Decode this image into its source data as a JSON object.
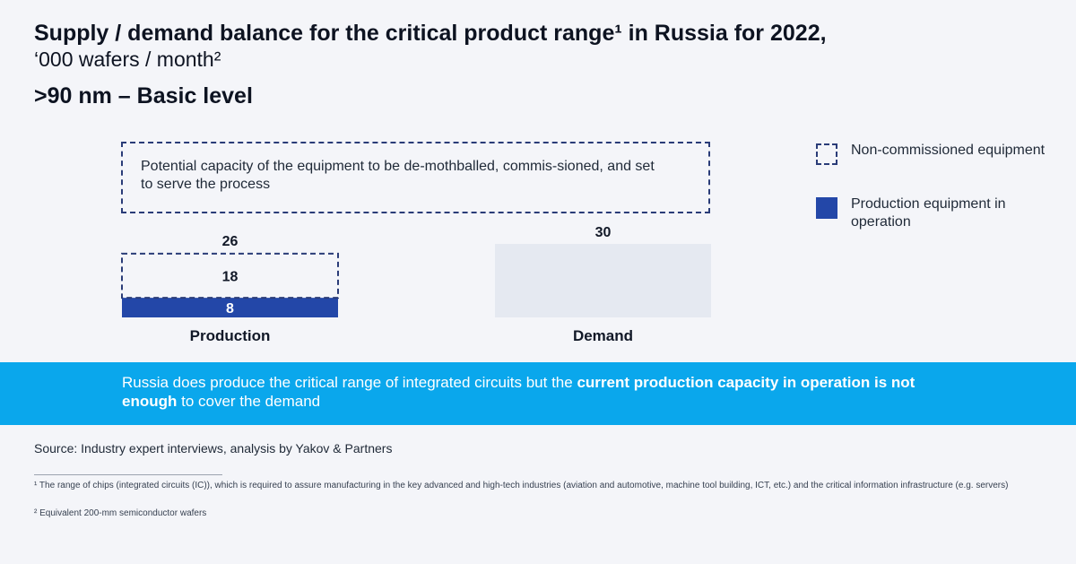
{
  "header": {
    "title": "Supply / demand balance for the critical product range¹ in Russia for 2022,",
    "subtitle": "‘000 wafers / month²",
    "level": ">90 nm – Basic level"
  },
  "potential_note": "Potential capacity of the equipment to be de-mothballed, commis-sioned, and set to serve the process",
  "legend": {
    "non_commissioned": "Non-commissioned equipment",
    "in_operation": "Production equipment in operation"
  },
  "colors": {
    "operation": "#2347a8",
    "demand": "#e5e9f1",
    "dashed": "#2a3c78",
    "banner": "#0aa7ec"
  },
  "chart_data": {
    "type": "bar",
    "categories": [
      "Production",
      "Demand"
    ],
    "series": [
      {
        "name": "Production equipment in operation",
        "values": [
          8,
          null
        ]
      },
      {
        "name": "Non-commissioned equipment",
        "values": [
          18,
          null
        ]
      },
      {
        "name": "",
        "values": [
          null,
          30
        ]
      }
    ],
    "totals": [
      26,
      30
    ],
    "ylim": [
      0,
      30
    ],
    "xlabel": "",
    "ylabel": ""
  },
  "banner": {
    "part1": "Russia does produce the critical range of integrated circuits but the ",
    "bold1": "current production capacity in operation is not enough",
    "part2": " to cover the demand"
  },
  "source": "Source: Industry expert interviews, analysis by Yakov & Partners",
  "footnotes": [
    "¹ The range of chips (integrated circuits (IC)), which is required to assure manufacturing in the key advanced and high-tech industries (aviation and automotive, machine tool building, ICT, etc.) and the critical information infrastructure (e.g. servers)",
    "² Equivalent 200-mm semiconductor wafers"
  ]
}
